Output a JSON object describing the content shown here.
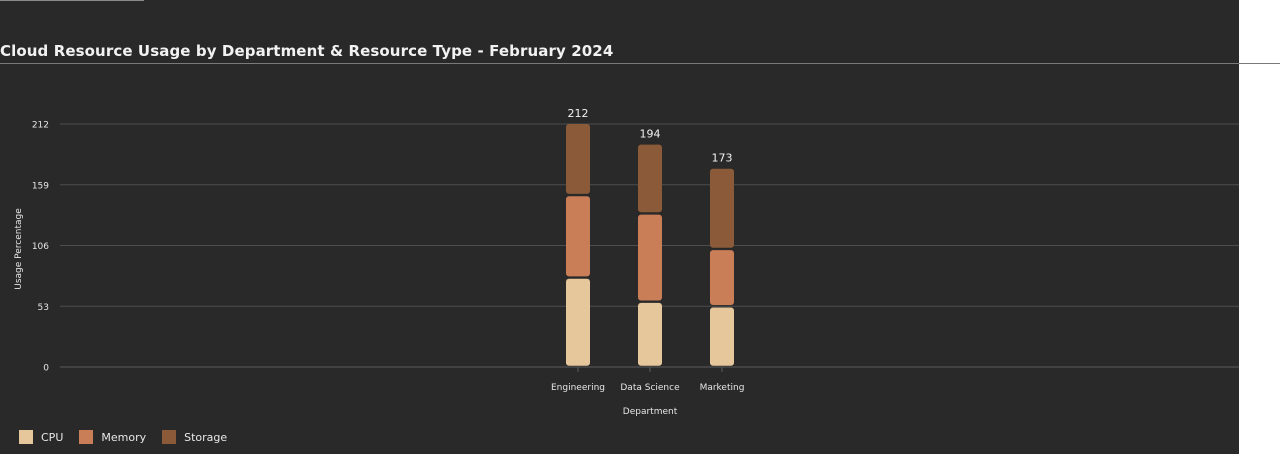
{
  "title": "Cloud Resource Usage by Department & Resource Type - February 2024",
  "colors": {
    "background": "#292929",
    "cpu": "#e6c79c",
    "memory": "#c97e58",
    "storage": "#8b5b39",
    "gridline": "#4d4d4d",
    "text": "#f2f2f2"
  },
  "legend": [
    {
      "label": "CPU",
      "color": "#e6c79c"
    },
    {
      "label": "Memory",
      "color": "#c97e58"
    },
    {
      "label": "Storage",
      "color": "#8b5b39"
    }
  ],
  "chart_data": {
    "type": "bar",
    "stacked": true,
    "title": "Cloud Resource Usage by Department & Resource Type - February 2024",
    "xlabel": "Department",
    "ylabel": "Usage Percentage",
    "categories": [
      "Engineering",
      "Data Science",
      "Marketing"
    ],
    "series": [
      {
        "name": "CPU",
        "values": [
          78,
          57,
          53
        ]
      },
      {
        "name": "Memory",
        "values": [
          72,
          77,
          50
        ]
      },
      {
        "name": "Storage",
        "values": [
          62,
          60,
          70
        ]
      }
    ],
    "totals": [
      212,
      194,
      173
    ],
    "yticks": [
      0,
      53,
      106,
      159,
      212
    ],
    "ylim": [
      0,
      212
    ],
    "grid": true,
    "legend_position": "bottom-left"
  }
}
